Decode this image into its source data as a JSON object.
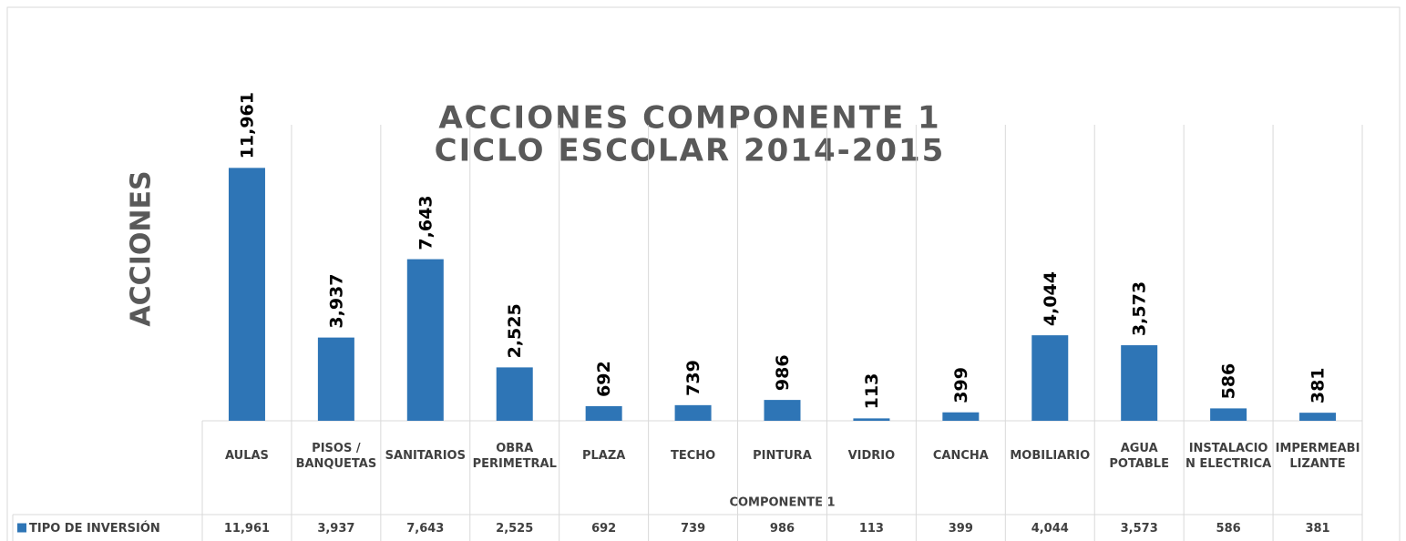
{
  "chart_data": {
    "type": "bar",
    "title": "ACCIONES COMPONENTE 1",
    "subtitle": "CICLO ESCOLAR 2014-2015",
    "y_label": "ACCIONES",
    "x_label": "COMPONENTE 1",
    "categories": [
      "AULAS",
      "PISOS / BANQUETAS",
      "SANITARIOS",
      "OBRA PERIMETRAL",
      "PLAZA",
      "TECHO",
      "PINTURA",
      "VIDRIO",
      "CANCHA",
      "MOBILIARIO",
      "AGUA POTABLE",
      "INSTALACION ELECTRICA",
      "IMPERMEABILIZANTE"
    ],
    "series": [
      {
        "name": "TIPO DE INVERSIÓN",
        "color": "#2e75b6",
        "values": [
          11961,
          3937,
          7643,
          2525,
          692,
          739,
          986,
          113,
          399,
          4044,
          3573,
          586,
          381
        ],
        "value_labels": [
          "11,961",
          "3,937",
          "7,643",
          "2,525",
          "692",
          "739",
          "986",
          "113",
          "399",
          "4,044",
          "3,573",
          "586",
          "381"
        ]
      }
    ],
    "ylim": [
      0,
      14000
    ],
    "grid": true
  }
}
